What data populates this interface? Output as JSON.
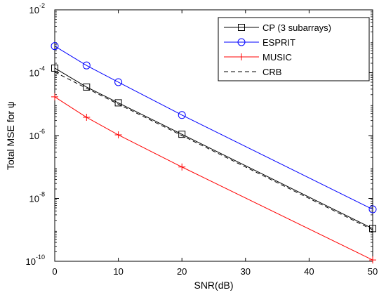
{
  "chart_data": {
    "type": "line",
    "xlabel": "SNR(dB)",
    "ylabel": "Total MSE for ψ",
    "xlim": [
      0,
      50
    ],
    "ylim": [
      1e-10,
      0.01
    ],
    "yscale": "log",
    "grid": false,
    "legend_position": "top-right",
    "x_ticks": [
      0,
      10,
      20,
      30,
      40,
      50
    ],
    "x_tick_labels": [
      "0",
      "10",
      "20",
      "30",
      "40",
      "50"
    ],
    "y_ticks": [
      1e-10,
      1e-08,
      1e-06,
      0.0001,
      0.01
    ],
    "y_tick_labels": [
      {
        "base": "10",
        "exp": "-10"
      },
      {
        "base": "10",
        "exp": "-8"
      },
      {
        "base": "10",
        "exp": "-6"
      },
      {
        "base": "10",
        "exp": "-4"
      },
      {
        "base": "10",
        "exp": "-2"
      }
    ],
    "series": [
      {
        "name": "CP (3 subarrays)",
        "color": "#000000",
        "dash": "solid",
        "marker": "square",
        "x": [
          0,
          5,
          10,
          20,
          50
        ],
        "y": [
          0.00014,
          3.5e-05,
          1.1e-05,
          1.1e-06,
          1.1e-09
        ]
      },
      {
        "name": "ESPRIT",
        "color": "#0000ff",
        "dash": "solid",
        "marker": "circle",
        "x": [
          0,
          5,
          10,
          20,
          50
        ],
        "y": [
          0.0007,
          0.00017,
          5e-05,
          4.5e-06,
          4.5e-09
        ]
      },
      {
        "name": "MUSIC",
        "color": "#ff0000",
        "dash": "solid",
        "marker": "plus",
        "x": [
          0,
          5,
          10,
          20,
          50
        ],
        "y": [
          1.7e-05,
          3.8e-06,
          1.05e-06,
          1e-07,
          1.1e-10
        ]
      },
      {
        "name": "CRB",
        "color": "#000000",
        "dash": "dashed",
        "marker": "none",
        "x": [
          0,
          5,
          10,
          20,
          50
        ],
        "y": [
          0.000105,
          3.2e-05,
          1e-05,
          1e-06,
          1e-09
        ]
      }
    ]
  }
}
